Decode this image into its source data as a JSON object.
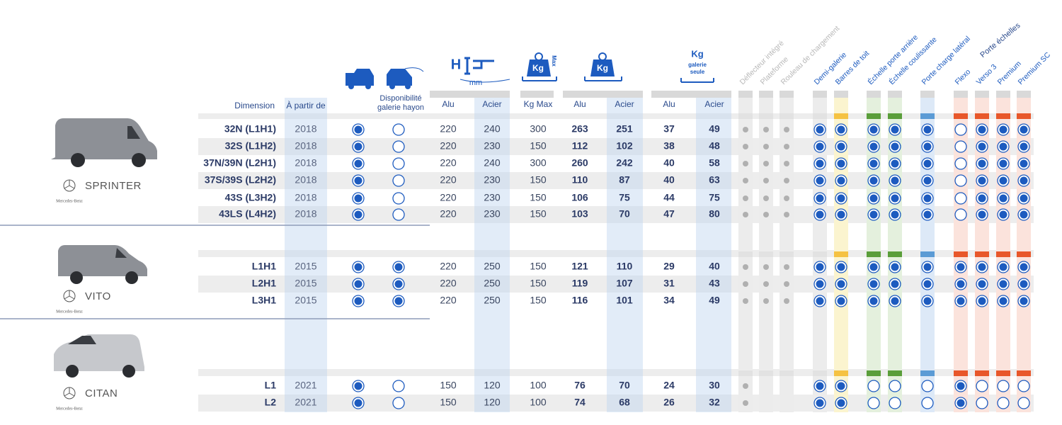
{
  "headers": {
    "dimension": "Dimension",
    "year": "À partir de",
    "gate": [
      "Disponibilité",
      "galerie hayon"
    ],
    "h_icon": "H",
    "h_unit": "mm",
    "kgmax_icon": "Kg",
    "kgmax_sub": "Max",
    "kg_icon": "Kg",
    "kg_roof_icon": [
      "Kg",
      "galerie",
      "seule"
    ],
    "columns": [
      "Alu",
      "Acier",
      "Kg Max",
      "Alu",
      "Acier",
      "Alu",
      "Acier"
    ]
  },
  "accessories": [
    "Déflecteur intégré",
    "Plateforme",
    "Rouleau de chargement",
    "Demi-galerie",
    "Barres de toit",
    "Échelle porte arrière",
    "Échelle coulissante",
    "Porte charge latéral",
    "Flexo",
    "Verso 3",
    "Premium",
    "Premium SC"
  ],
  "accessory_group": "Porte échelles",
  "groups": [
    {
      "model": "SPRINTER",
      "brand": "Mercedes-Benz",
      "rows": [
        {
          "dimension": "32N (L1H1)",
          "year": 2018,
          "availability": [
            true,
            false
          ],
          "values": [
            220,
            240,
            300,
            263,
            251,
            37,
            49
          ],
          "unavailable": 3,
          "options": [
            true,
            true,
            true,
            true,
            true,
            false,
            true,
            true,
            true
          ]
        },
        {
          "dimension": "32S (L1H2)",
          "year": 2018,
          "availability": [
            true,
            false
          ],
          "values": [
            220,
            230,
            150,
            112,
            102,
            38,
            48
          ],
          "unavailable": 3,
          "options": [
            true,
            true,
            true,
            true,
            true,
            false,
            true,
            true,
            true
          ]
        },
        {
          "dimension": "37N/39N (L2H1)",
          "year": 2018,
          "availability": [
            true,
            false
          ],
          "values": [
            220,
            240,
            300,
            260,
            242,
            40,
            58
          ],
          "unavailable": 3,
          "options": [
            true,
            true,
            true,
            true,
            true,
            false,
            true,
            true,
            true
          ]
        },
        {
          "dimension": "37S/39S (L2H2)",
          "year": 2018,
          "availability": [
            true,
            false
          ],
          "values": [
            220,
            230,
            150,
            110,
            87,
            40,
            63
          ],
          "unavailable": 3,
          "options": [
            true,
            true,
            true,
            true,
            true,
            false,
            true,
            true,
            true
          ]
        },
        {
          "dimension": "43S (L3H2)",
          "year": 2018,
          "availability": [
            true,
            false
          ],
          "values": [
            220,
            230,
            150,
            106,
            75,
            44,
            75
          ],
          "unavailable": 3,
          "options": [
            true,
            true,
            true,
            true,
            true,
            false,
            true,
            true,
            true
          ]
        },
        {
          "dimension": "43LS (L4H2)",
          "year": 2018,
          "availability": [
            true,
            false
          ],
          "values": [
            220,
            230,
            150,
            103,
            70,
            47,
            80
          ],
          "unavailable": 3,
          "options": [
            true,
            true,
            true,
            true,
            true,
            false,
            true,
            true,
            true
          ]
        }
      ]
    },
    {
      "model": "VITO",
      "brand": "Mercedes-Benz",
      "rows": [
        {
          "dimension": "L1H1",
          "year": 2015,
          "availability": [
            true,
            true
          ],
          "values": [
            220,
            250,
            150,
            121,
            110,
            29,
            40
          ],
          "unavailable": 3,
          "options": [
            true,
            true,
            true,
            true,
            true,
            true,
            true,
            true,
            true
          ]
        },
        {
          "dimension": "L2H1",
          "year": 2015,
          "availability": [
            true,
            true
          ],
          "values": [
            220,
            250,
            150,
            119,
            107,
            31,
            43
          ],
          "unavailable": 3,
          "options": [
            true,
            true,
            true,
            true,
            true,
            true,
            true,
            true,
            true
          ]
        },
        {
          "dimension": "L3H1",
          "year": 2015,
          "availability": [
            true,
            true
          ],
          "values": [
            220,
            250,
            150,
            116,
            101,
            34,
            49
          ],
          "unavailable": 3,
          "options": [
            true,
            true,
            true,
            true,
            true,
            true,
            true,
            true,
            true
          ]
        }
      ]
    },
    {
      "model": "CITAN",
      "brand": "Mercedes-Benz",
      "rows": [
        {
          "dimension": "L1",
          "year": 2021,
          "availability": [
            true,
            false
          ],
          "values": [
            150,
            120,
            100,
            76,
            70,
            24,
            30
          ],
          "unavailable": 1,
          "options": [
            true,
            true,
            false,
            false,
            false,
            true,
            false,
            false,
            false
          ]
        },
        {
          "dimension": "L2",
          "year": 2021,
          "availability": [
            true,
            false
          ],
          "values": [
            150,
            120,
            100,
            74,
            68,
            26,
            32
          ],
          "unavailable": 1,
          "options": [
            true,
            true,
            false,
            false,
            false,
            true,
            false,
            false,
            false
          ]
        }
      ]
    }
  ]
}
